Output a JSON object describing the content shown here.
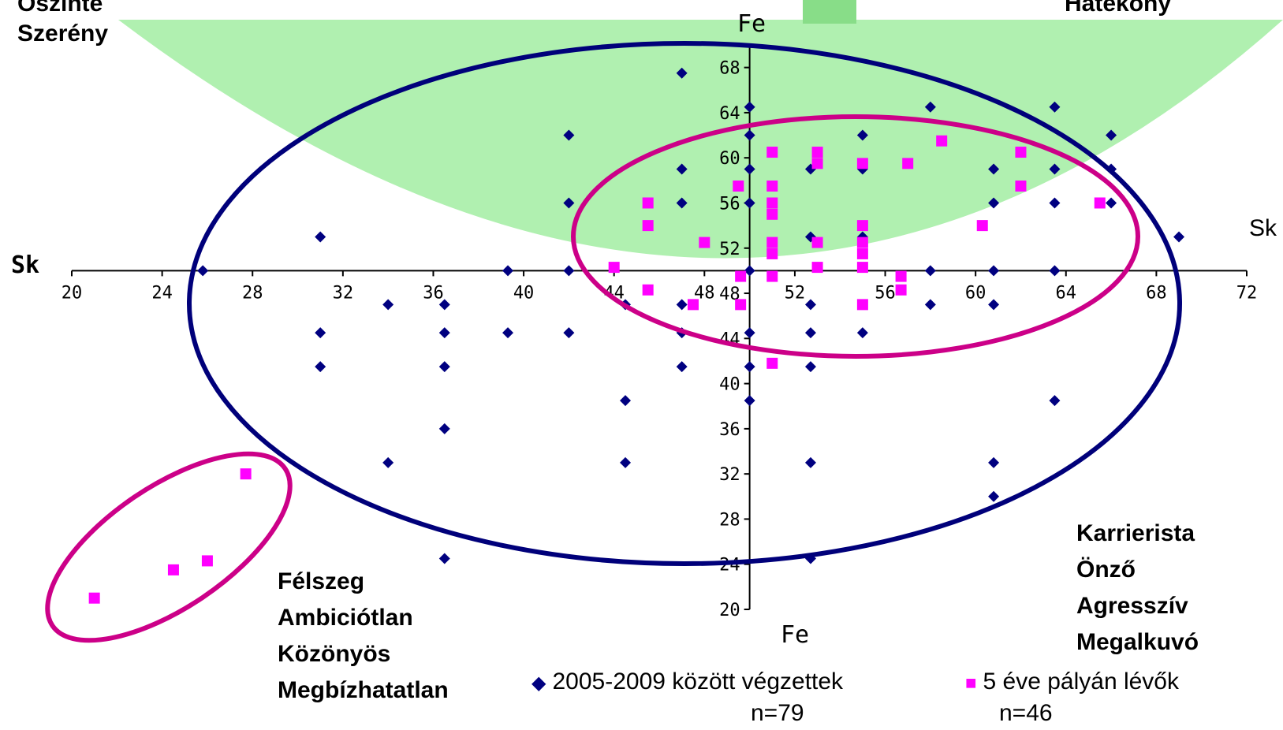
{
  "colors": {
    "series1": "#000080",
    "series2": "#ff00ff",
    "green_zone": "#b0f0b0",
    "green_tab": "#88dd88",
    "ellipse_navy": "#00007a",
    "ellipse_magenta": "#cc0088"
  },
  "quadrant_labels": {
    "top_left": [
      "Őszinte",
      "Szerény"
    ],
    "top_right": [
      "Hatékony"
    ],
    "bottom_left": [
      "Félszeg",
      "Ambiciótlan",
      "Közönyös",
      "Megbízhatatlan"
    ],
    "bottom_right": [
      "Karrierista",
      "Önző",
      "Agresszív",
      "Megalkuvó"
    ]
  },
  "legend": {
    "series1_label": "2005-2009 között végzettek",
    "series1_count": "n=79",
    "series2_label": "5 éve pályán lévők",
    "series2_count": "n=46"
  },
  "chart_data": {
    "type": "scatter",
    "x_axis_label": "Sk",
    "x_axis_label_right": "Sk",
    "y_axis_label_top": "Fe",
    "y_axis_label_bottom": "Fe",
    "xlim": [
      20,
      72
    ],
    "ylim": [
      20,
      70
    ],
    "axes_cross": [
      50,
      50
    ],
    "x_ticks": [
      20,
      24,
      28,
      32,
      36,
      40,
      44,
      48,
      52,
      56,
      60,
      64,
      68,
      72
    ],
    "y_ticks": [
      20,
      24,
      28,
      32,
      36,
      40,
      44,
      48,
      52,
      56,
      60,
      64,
      68
    ],
    "grid": false,
    "legend_position": "bottom",
    "series": [
      {
        "name": "2005-2009 között végzettek",
        "marker": "diamond",
        "points": [
          [
            47,
            67.5
          ],
          [
            50,
            64.5
          ],
          [
            58,
            64.5
          ],
          [
            63.5,
            64.5
          ],
          [
            42,
            62
          ],
          [
            50,
            62
          ],
          [
            55,
            62
          ],
          [
            66,
            62
          ],
          [
            47,
            59
          ],
          [
            50,
            59
          ],
          [
            52.7,
            59
          ],
          [
            55,
            59
          ],
          [
            60.8,
            59
          ],
          [
            63.5,
            59
          ],
          [
            66,
            59
          ],
          [
            42,
            56
          ],
          [
            47,
            56
          ],
          [
            50,
            56
          ],
          [
            60.8,
            56
          ],
          [
            63.5,
            56
          ],
          [
            66,
            56
          ],
          [
            31,
            53
          ],
          [
            52.7,
            53
          ],
          [
            55,
            53
          ],
          [
            69,
            53
          ],
          [
            25.8,
            50
          ],
          [
            39.3,
            50
          ],
          [
            42,
            50
          ],
          [
            50,
            50
          ],
          [
            58,
            50
          ],
          [
            60.8,
            50
          ],
          [
            63.5,
            50
          ],
          [
            34,
            47
          ],
          [
            36.5,
            47
          ],
          [
            44.5,
            47
          ],
          [
            47,
            47
          ],
          [
            52.7,
            47
          ],
          [
            58,
            47
          ],
          [
            60.8,
            47
          ],
          [
            31,
            44.5
          ],
          [
            36.5,
            44.5
          ],
          [
            39.3,
            44.5
          ],
          [
            42,
            44.5
          ],
          [
            47,
            44.5
          ],
          [
            50,
            44.5
          ],
          [
            52.7,
            44.5
          ],
          [
            55,
            44.5
          ],
          [
            31,
            41.5
          ],
          [
            36.5,
            41.5
          ],
          [
            47,
            41.5
          ],
          [
            50,
            41.5
          ],
          [
            52.7,
            41.5
          ],
          [
            44.5,
            38.5
          ],
          [
            50,
            38.5
          ],
          [
            63.5,
            38.5
          ],
          [
            36.5,
            36
          ],
          [
            34,
            33
          ],
          [
            44.5,
            33
          ],
          [
            52.7,
            33
          ],
          [
            60.8,
            33
          ],
          [
            60.8,
            30
          ],
          [
            36.5,
            24.5
          ],
          [
            52.7,
            24.5
          ]
        ]
      },
      {
        "name": "5 éve pályán lévők",
        "marker": "square",
        "points": [
          [
            58.5,
            61.5
          ],
          [
            51,
            60.5
          ],
          [
            53,
            60.5
          ],
          [
            62,
            60.5
          ],
          [
            53,
            59.5
          ],
          [
            55,
            59.5
          ],
          [
            57,
            59.5
          ],
          [
            51,
            57.5
          ],
          [
            49.5,
            57.5
          ],
          [
            62,
            57.5
          ],
          [
            45.5,
            56
          ],
          [
            51,
            56
          ],
          [
            51,
            55
          ],
          [
            65.5,
            56
          ],
          [
            45.5,
            54
          ],
          [
            55,
            54
          ],
          [
            60.3,
            54
          ],
          [
            48,
            52.5
          ],
          [
            51,
            52.5
          ],
          [
            53,
            52.5
          ],
          [
            55,
            52.5
          ],
          [
            51,
            51.5
          ],
          [
            55,
            51.5
          ],
          [
            44,
            50.3
          ],
          [
            53,
            50.3
          ],
          [
            55,
            50.3
          ],
          [
            49.6,
            49.5
          ],
          [
            51,
            49.5
          ],
          [
            56.7,
            49.5
          ],
          [
            45.5,
            48.3
          ],
          [
            56.7,
            48.3
          ],
          [
            47.5,
            47
          ],
          [
            49.6,
            47
          ],
          [
            55,
            47
          ],
          [
            51,
            41.8
          ],
          [
            27.7,
            32
          ],
          [
            24.5,
            23.5
          ],
          [
            26,
            24.3
          ],
          [
            21,
            21
          ]
        ]
      }
    ]
  }
}
